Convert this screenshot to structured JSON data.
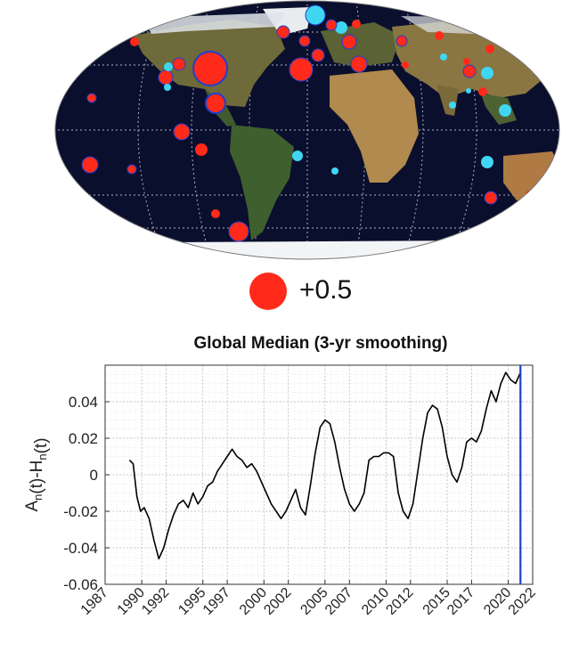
{
  "legend": {
    "label": "+0.5",
    "color": "#ff2a1a"
  },
  "colors": {
    "warm": "#ff2a1a",
    "cool": "#3fd6f2",
    "ocean": "#0b0f2e",
    "line": "#000000",
    "marker": "#1f3fcf"
  },
  "chart_data": {
    "type": "line",
    "title": "Global Median (3-yr smoothing)",
    "xlabel": "",
    "ylabel": "A_n(t)-H_n(t)",
    "xlim": [
      1987,
      2022
    ],
    "ylim": [
      -0.06,
      0.06
    ],
    "xticks": [
      "1987",
      "1990",
      "1992",
      "1995",
      "1997",
      "2000",
      "2002",
      "2005",
      "2007",
      "2010",
      "2012",
      "2015",
      "2017",
      "2020",
      "2022"
    ],
    "yticks": [
      "0.04",
      "0.02",
      "0",
      "-0.02",
      "-0.04",
      "-0.06"
    ],
    "grid": true,
    "vertical_marker_x": 2021.0,
    "series": [
      {
        "x": [
          1989.0,
          1989.3,
          1989.6,
          1989.9,
          1990.2,
          1990.6,
          1991.0,
          1991.4,
          1991.8,
          1992.2,
          1992.6,
          1993.0,
          1993.4,
          1993.8,
          1994.2,
          1994.6,
          1995.0,
          1995.4,
          1995.8,
          1996.2,
          1996.6,
          1997.0,
          1997.4,
          1997.8,
          1998.2,
          1998.6,
          1999.0,
          1999.4,
          1999.8,
          2000.2,
          2000.6,
          2001.0,
          2001.4,
          2001.8,
          2002.2,
          2002.6,
          2003.0,
          2003.4,
          2003.8,
          2004.2,
          2004.6,
          2005.0,
          2005.4,
          2005.8,
          2006.2,
          2006.6,
          2007.0,
          2007.4,
          2007.8,
          2008.2,
          2008.6,
          2009.0,
          2009.4,
          2009.8,
          2010.2,
          2010.6,
          2011.0,
          2011.4,
          2011.8,
          2012.2,
          2012.6,
          2013.0,
          2013.4,
          2013.8,
          2014.2,
          2014.6,
          2015.0,
          2015.4,
          2015.8,
          2016.2,
          2016.6,
          2017.0,
          2017.4,
          2017.8,
          2018.2,
          2018.6,
          2019.0,
          2019.4,
          2019.8,
          2020.2,
          2020.6,
          2021.0
        ],
        "values": [
          0.008,
          0.006,
          -0.012,
          -0.02,
          -0.018,
          -0.024,
          -0.036,
          -0.046,
          -0.04,
          -0.03,
          -0.022,
          -0.016,
          -0.014,
          -0.018,
          -0.01,
          -0.016,
          -0.012,
          -0.006,
          -0.004,
          0.002,
          0.006,
          0.01,
          0.014,
          0.01,
          0.008,
          0.004,
          0.006,
          0.002,
          -0.004,
          -0.01,
          -0.016,
          -0.02,
          -0.024,
          -0.02,
          -0.014,
          -0.008,
          -0.018,
          -0.022,
          -0.006,
          0.012,
          0.026,
          0.03,
          0.028,
          0.018,
          0.004,
          -0.008,
          -0.016,
          -0.02,
          -0.016,
          -0.01,
          0.008,
          0.01,
          0.01,
          0.012,
          0.012,
          0.01,
          -0.01,
          -0.02,
          -0.024,
          -0.016,
          0.002,
          0.02,
          0.034,
          0.038,
          0.036,
          0.026,
          0.01,
          0.0,
          -0.004,
          0.004,
          0.018,
          0.02,
          0.018,
          0.024,
          0.036,
          0.046,
          0.04,
          0.05,
          0.056,
          0.052,
          0.05,
          0.056
        ]
      }
    ]
  }
}
